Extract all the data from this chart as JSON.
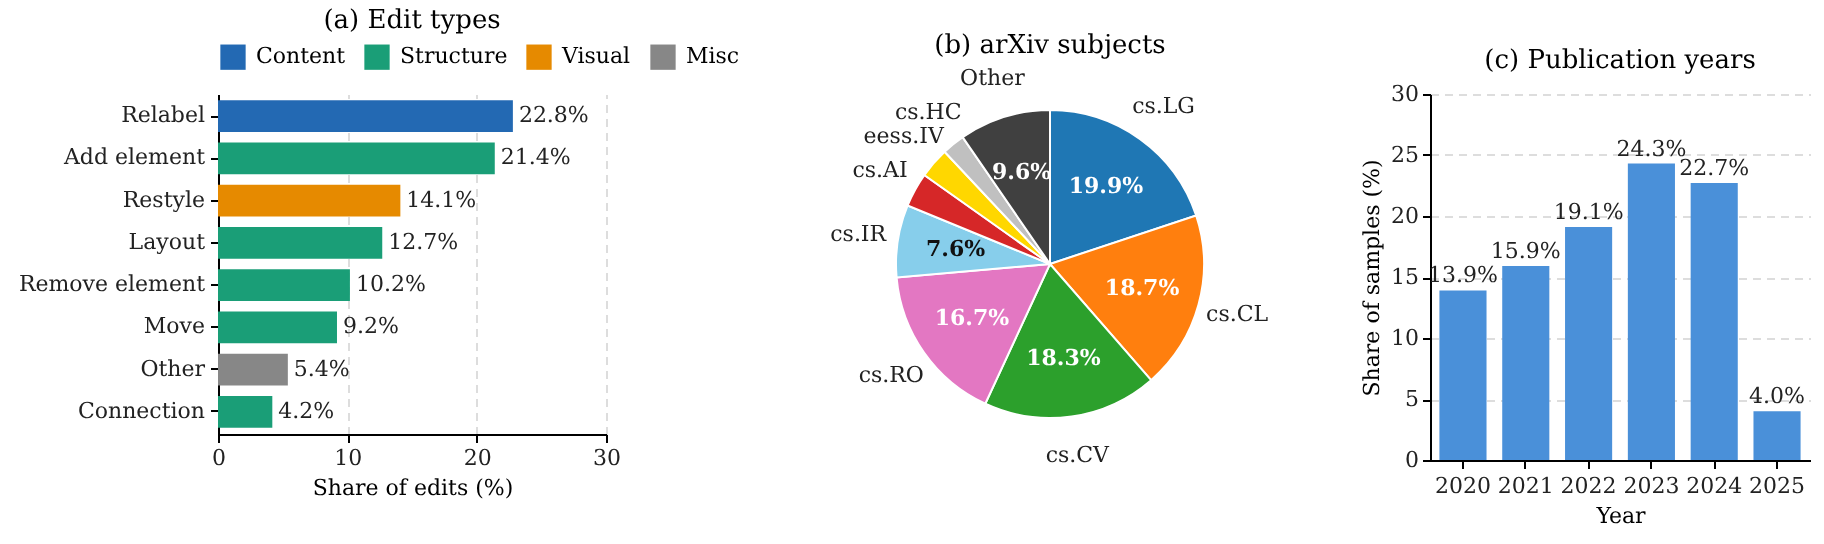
{
  "chart_data": [
    {
      "type": "bar",
      "title": "(a) Edit types",
      "orientation": "horizontal",
      "categories": [
        "Relabel",
        "Add element",
        "Restyle",
        "Layout",
        "Remove element",
        "Move",
        "Other",
        "Connection"
      ],
      "series": [
        {
          "name": "Content",
          "color": "#2369b3",
          "values": [
            22.8,
            null,
            null,
            null,
            null,
            null,
            null,
            null
          ],
          "value_labels": [
            "22.8%",
            null,
            null,
            null,
            null,
            null,
            null,
            null
          ]
        },
        {
          "name": "Structure",
          "color": "#1a9e77",
          "values": [
            null,
            21.4,
            null,
            12.7,
            10.2,
            9.2,
            null,
            4.2
          ],
          "value_labels": [
            null,
            "21.4%",
            null,
            "12.7%",
            "10.2%",
            "9.2%",
            null,
            "4.2%"
          ]
        },
        {
          "name": "Visual",
          "color": "#e68a00",
          "values": [
            null,
            null,
            14.1,
            null,
            null,
            null,
            null,
            null
          ],
          "value_labels": [
            null,
            null,
            "14.1%",
            null,
            null,
            null,
            null,
            null
          ]
        },
        {
          "name": "Misc",
          "color": "#878787",
          "values": [
            null,
            null,
            null,
            null,
            null,
            null,
            5.4,
            null
          ],
          "value_labels": [
            null,
            null,
            null,
            null,
            null,
            null,
            "5.4%",
            null
          ]
        }
      ],
      "xlim": [
        0,
        30
      ],
      "xticks": [
        0,
        10,
        20,
        30
      ],
      "xlabel": "Share of edits (%)",
      "grid": "x",
      "legend": "top"
    },
    {
      "type": "pie",
      "title": "(b) arXiv subjects",
      "categories": [
        "cs.LG",
        "cs.CL",
        "cs.CV",
        "cs.RO",
        "cs.IR",
        "cs.AI",
        "eess.IV",
        "cs.HC",
        "Other"
      ],
      "values": [
        19.9,
        18.7,
        18.3,
        16.7,
        7.6,
        3.6,
        3.2,
        2.4,
        9.6
      ],
      "colors": [
        "#1f77b4",
        "#ff7f0e",
        "#2ca02c",
        "#e377c2",
        "#87ceeb",
        "#d62728",
        "#ffd700",
        "#c0c0c0",
        "#404040"
      ],
      "value_labels": [
        "19.9%",
        "18.7%",
        "18.3%",
        "16.7%",
        "7.6%",
        null,
        null,
        null,
        "9.6%"
      ]
    },
    {
      "type": "bar",
      "title": "(c) Publication years",
      "categories": [
        "2020",
        "2021",
        "2022",
        "2023",
        "2024",
        "2025"
      ],
      "values": [
        13.9,
        15.9,
        19.1,
        24.3,
        22.7,
        4.0
      ],
      "color": "#4a90d9",
      "value_labels": [
        "13.9%",
        "15.9%",
        "19.1%",
        "24.3%",
        "22.7%",
        "4.0%"
      ],
      "ylim": [
        0,
        30
      ],
      "yticks": [
        0,
        5,
        10,
        15,
        20,
        25,
        30
      ],
      "xlabel": "Year",
      "ylabel": "Share of samples (%)",
      "grid": "y"
    }
  ]
}
